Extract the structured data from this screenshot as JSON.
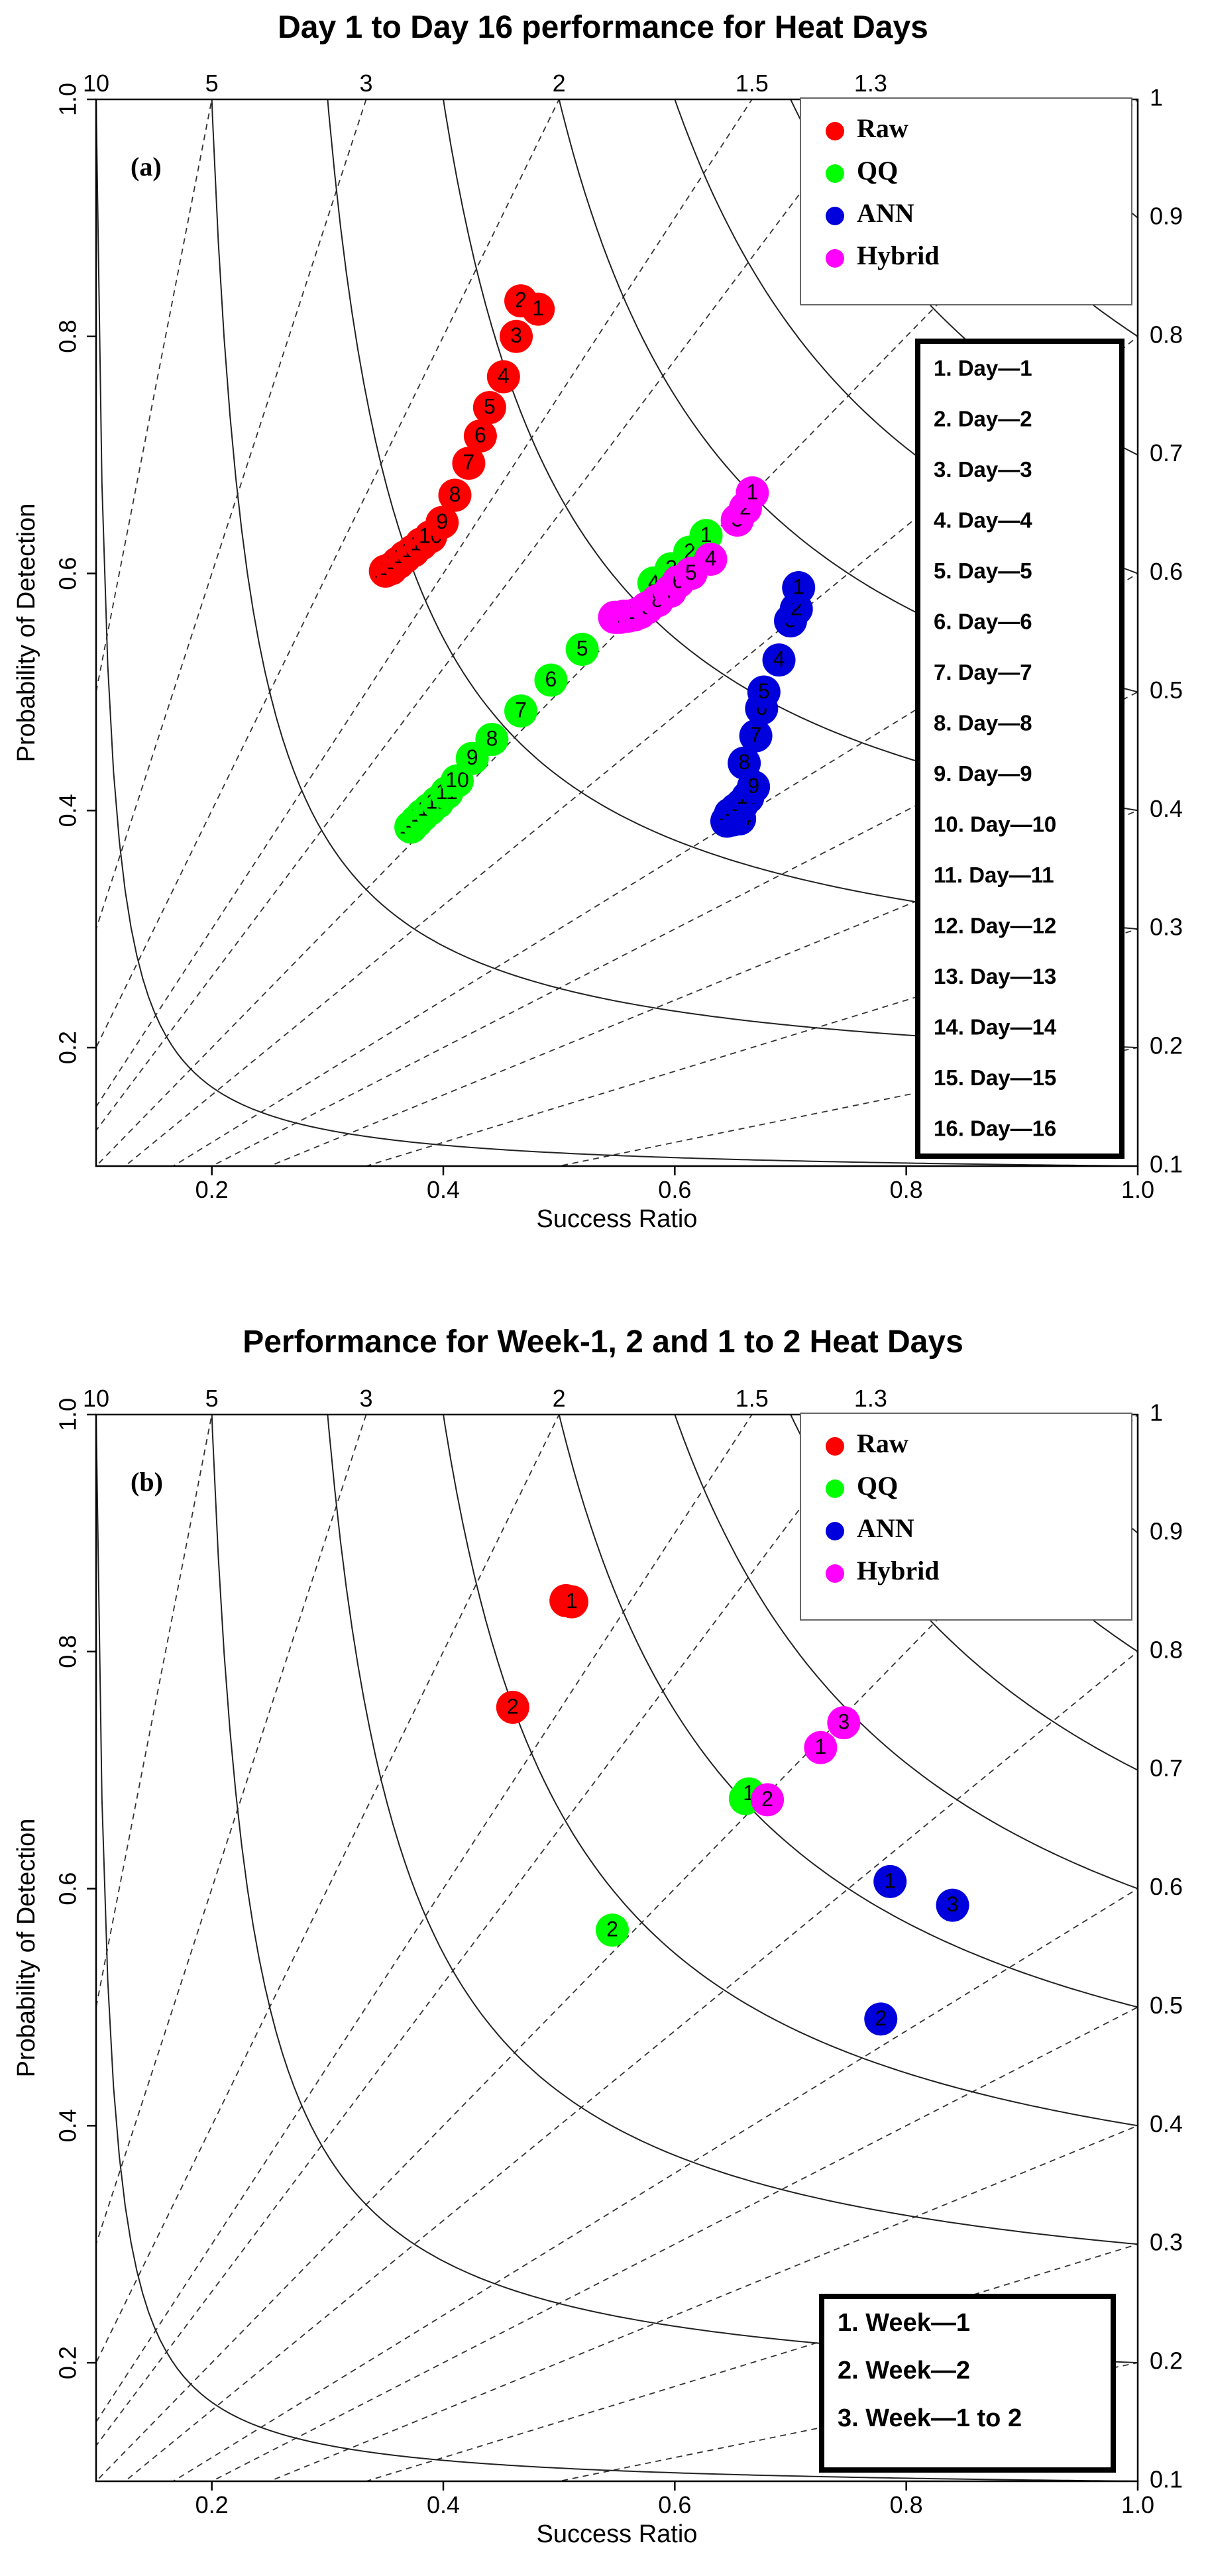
{
  "chart_data": [
    {
      "type": "scatter",
      "subtype": "performance-diagram",
      "title": "Day 1 to Day 16 performance for Heat Days",
      "panel_label": "(a)",
      "xlabel": "Success Ratio",
      "ylabel": "Probability of Detection",
      "xlim": [
        0.1,
        1.0
      ],
      "ylim": [
        0.1,
        1.0
      ],
      "x_ticks": [
        "0.2",
        "0.4",
        "0.6",
        "0.8",
        "1.0"
      ],
      "y_ticks": [
        "0.2",
        "0.4",
        "0.6",
        "0.8",
        "1.0"
      ],
      "bias_values": [
        10,
        5,
        3,
        2,
        1.5,
        1.3
      ],
      "bias_labels": [
        "10",
        "5",
        "3",
        "2",
        "1.5",
        "1.3"
      ],
      "csi_values": [
        0.1,
        0.2,
        0.3,
        0.4,
        0.5,
        0.6,
        0.7,
        0.8,
        0.9,
        1
      ],
      "csi_labels": [
        "0.1",
        "0.2",
        "0.3",
        "0.4",
        "0.5",
        "0.6",
        "0.7",
        "0.8",
        "0.9",
        "1"
      ],
      "legend": [
        "Raw",
        "QQ",
        "ANN",
        "Hybrid"
      ],
      "series": [
        {
          "name": "Raw",
          "color": "#ff0000",
          "points": [
            {
              "label": "1",
              "x": 0.482,
              "y": 0.823
            },
            {
              "label": "2",
              "x": 0.467,
              "y": 0.83
            },
            {
              "label": "3",
              "x": 0.463,
              "y": 0.8
            },
            {
              "label": "4",
              "x": 0.452,
              "y": 0.766
            },
            {
              "label": "5",
              "x": 0.44,
              "y": 0.74
            },
            {
              "label": "6",
              "x": 0.432,
              "y": 0.716
            },
            {
              "label": "7",
              "x": 0.422,
              "y": 0.693
            },
            {
              "label": "8",
              "x": 0.41,
              "y": 0.666
            },
            {
              "label": "9",
              "x": 0.399,
              "y": 0.643
            },
            {
              "label": "10",
              "x": 0.389,
              "y": 0.631
            },
            {
              "label": "11",
              "x": 0.381,
              "y": 0.625
            },
            {
              "label": "12",
              "x": 0.374,
              "y": 0.619
            },
            {
              "label": "13",
              "x": 0.367,
              "y": 0.614
            },
            {
              "label": "14",
              "x": 0.361,
              "y": 0.609
            },
            {
              "label": "15",
              "x": 0.355,
              "y": 0.604
            },
            {
              "label": "16",
              "x": 0.35,
              "y": 0.602
            }
          ]
        },
        {
          "name": "QQ",
          "color": "#00ff00",
          "points": [
            {
              "label": "1",
              "x": 0.627,
              "y": 0.632
            },
            {
              "label": "2",
              "x": 0.613,
              "y": 0.618
            },
            {
              "label": "3",
              "x": 0.597,
              "y": 0.604
            },
            {
              "label": "4",
              "x": 0.582,
              "y": 0.592
            },
            {
              "label": "5",
              "x": 0.52,
              "y": 0.536
            },
            {
              "label": "6",
              "x": 0.493,
              "y": 0.51
            },
            {
              "label": "7",
              "x": 0.467,
              "y": 0.484
            },
            {
              "label": "8",
              "x": 0.442,
              "y": 0.46
            },
            {
              "label": "9",
              "x": 0.425,
              "y": 0.444
            },
            {
              "label": "10",
              "x": 0.412,
              "y": 0.425
            },
            {
              "label": "11",
              "x": 0.403,
              "y": 0.415
            },
            {
              "label": "12",
              "x": 0.395,
              "y": 0.407
            },
            {
              "label": "13",
              "x": 0.388,
              "y": 0.401
            },
            {
              "label": "14",
              "x": 0.382,
              "y": 0.396
            },
            {
              "label": "15",
              "x": 0.377,
              "y": 0.391
            },
            {
              "label": "16",
              "x": 0.372,
              "y": 0.386
            }
          ]
        },
        {
          "name": "ANN",
          "color": "#0000dd",
          "points": [
            {
              "label": "1",
              "x": 0.707,
              "y": 0.588
            },
            {
              "label": "2",
              "x": 0.705,
              "y": 0.57
            },
            {
              "label": "3",
              "x": 0.7,
              "y": 0.56
            },
            {
              "label": "4",
              "x": 0.69,
              "y": 0.527
            },
            {
              "label": "5",
              "x": 0.677,
              "y": 0.5
            },
            {
              "label": "6",
              "x": 0.675,
              "y": 0.486
            },
            {
              "label": "7",
              "x": 0.67,
              "y": 0.463
            },
            {
              "label": "8",
              "x": 0.66,
              "y": 0.44
            },
            {
              "label": "9",
              "x": 0.668,
              "y": 0.42
            },
            {
              "label": "10",
              "x": 0.663,
              "y": 0.411
            },
            {
              "label": "11",
              "x": 0.658,
              "y": 0.405
            },
            {
              "label": "12",
              "x": 0.653,
              "y": 0.401
            },
            {
              "label": "13",
              "x": 0.648,
              "y": 0.397
            },
            {
              "label": "14",
              "x": 0.656,
              "y": 0.393
            },
            {
              "label": "15",
              "x": 0.65,
              "y": 0.392
            },
            {
              "label": "16",
              "x": 0.645,
              "y": 0.391
            }
          ]
        },
        {
          "name": "Hybrid",
          "color": "#ff00ff",
          "points": [
            {
              "label": "1",
              "x": 0.667,
              "y": 0.668
            },
            {
              "label": "2",
              "x": 0.661,
              "y": 0.655
            },
            {
              "label": "3",
              "x": 0.654,
              "y": 0.645
            },
            {
              "label": "4",
              "x": 0.631,
              "y": 0.612
            },
            {
              "label": "5",
              "x": 0.614,
              "y": 0.6
            },
            {
              "label": "6",
              "x": 0.603,
              "y": 0.593
            },
            {
              "label": "7",
              "x": 0.596,
              "y": 0.585
            },
            {
              "label": "8",
              "x": 0.585,
              "y": 0.577
            },
            {
              "label": "9",
              "x": 0.576,
              "y": 0.571
            },
            {
              "label": "10",
              "x": 0.57,
              "y": 0.567
            },
            {
              "label": "11",
              "x": 0.565,
              "y": 0.565
            },
            {
              "label": "12",
              "x": 0.56,
              "y": 0.564
            },
            {
              "label": "13",
              "x": 0.556,
              "y": 0.564
            },
            {
              "label": "14",
              "x": 0.553,
              "y": 0.563
            },
            {
              "label": "15",
              "x": 0.55,
              "y": 0.563
            },
            {
              "label": "16",
              "x": 0.548,
              "y": 0.563
            }
          ]
        }
      ],
      "key_box": {
        "items": [
          "1. Day—1",
          "2. Day—2",
          "3. Day—3",
          "4. Day—4",
          "5. Day—5",
          "6. Day—6",
          "7. Day—7",
          "8. Day—8",
          "9. Day—9",
          "10. Day—10",
          "11. Day—11",
          "12. Day—12",
          "13. Day—13",
          "14. Day—14",
          "15. Day—15",
          "16. Day—16"
        ]
      }
    },
    {
      "type": "scatter",
      "subtype": "performance-diagram",
      "title": "Performance for Week-1, 2 and 1 to 2 Heat Days",
      "panel_label": "(b)",
      "xlabel": "Success Ratio",
      "ylabel": "Probability of Detection",
      "xlim": [
        0.1,
        1.0
      ],
      "ylim": [
        0.1,
        1.0
      ],
      "x_ticks": [
        "0.2",
        "0.4",
        "0.6",
        "0.8",
        "1.0"
      ],
      "y_ticks": [
        "0.2",
        "0.4",
        "0.6",
        "0.8",
        "1.0"
      ],
      "bias_values": [
        10,
        5,
        3,
        2,
        1.5,
        1.3
      ],
      "bias_labels": [
        "10",
        "5",
        "3",
        "2",
        "1.5",
        "1.3"
      ],
      "csi_values": [
        0.1,
        0.2,
        0.3,
        0.4,
        0.5,
        0.6,
        0.7,
        0.8,
        0.9,
        1
      ],
      "csi_labels": [
        "0.1",
        "0.2",
        "0.3",
        "0.4",
        "0.5",
        "0.6",
        "0.7",
        "0.8",
        "0.9",
        "1"
      ],
      "legend": [
        "Raw",
        "QQ",
        "ANN",
        "Hybrid"
      ],
      "series": [
        {
          "name": "Raw",
          "color": "#ff0000",
          "points": [
            {
              "label": "1",
              "x": 0.511,
              "y": 0.842
            },
            {
              "label": "2",
              "x": 0.46,
              "y": 0.753
            },
            {
              "label": "3",
              "x": 0.506,
              "y": 0.843
            }
          ]
        },
        {
          "name": "QQ",
          "color": "#00ff00",
          "points": [
            {
              "label": "1",
              "x": 0.664,
              "y": 0.68
            },
            {
              "label": "2",
              "x": 0.546,
              "y": 0.565
            },
            {
              "label": "3",
              "x": 0.661,
              "y": 0.676
            }
          ]
        },
        {
          "name": "ANN",
          "color": "#0000dd",
          "points": [
            {
              "label": "1",
              "x": 0.786,
              "y": 0.606
            },
            {
              "label": "2",
              "x": 0.778,
              "y": 0.49
            },
            {
              "label": "3",
              "x": 0.84,
              "y": 0.586
            }
          ]
        },
        {
          "name": "Hybrid",
          "color": "#ff00ff",
          "points": [
            {
              "label": "1",
              "x": 0.726,
              "y": 0.719
            },
            {
              "label": "2",
              "x": 0.68,
              "y": 0.675
            },
            {
              "label": "3",
              "x": 0.746,
              "y": 0.74
            }
          ]
        }
      ],
      "key_box": {
        "items": [
          "1. Week—1",
          "2. Week—2",
          "3. Week—1 to 2"
        ]
      }
    }
  ]
}
